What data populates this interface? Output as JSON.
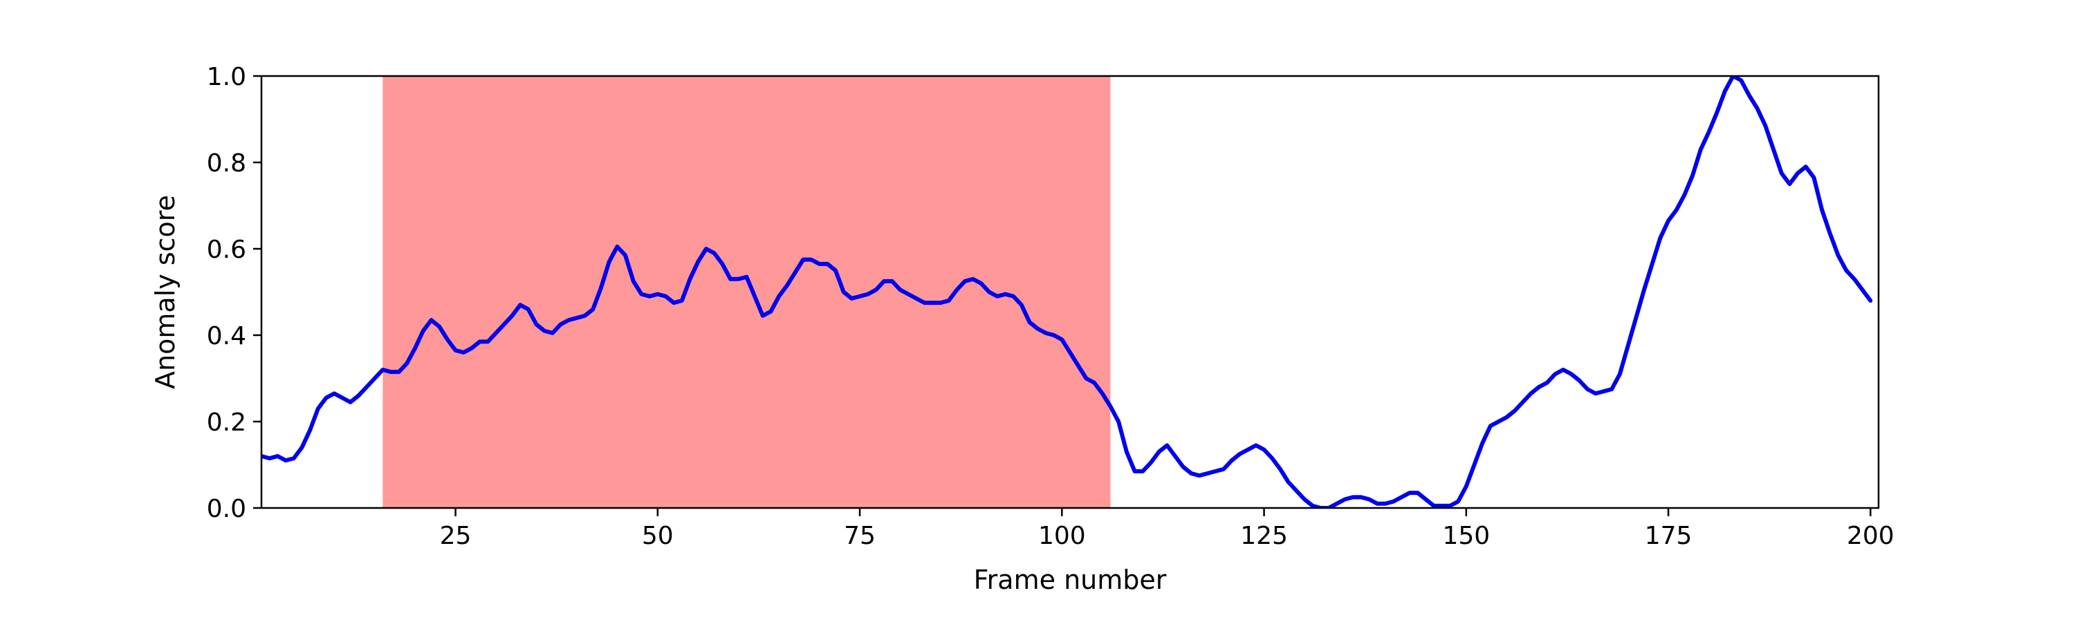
{
  "chart_data": {
    "type": "line",
    "title": "",
    "xlabel": "Frame number",
    "ylabel": "Anomaly score",
    "xlim": [
      1,
      201
    ],
    "ylim": [
      0.0,
      1.0
    ],
    "grid": false,
    "x_ticks": [
      25,
      50,
      75,
      100,
      125,
      150,
      175,
      200
    ],
    "y_ticks": [
      0.0,
      0.2,
      0.4,
      0.6,
      0.8,
      1.0
    ],
    "x_tick_labels": [
      "25",
      "50",
      "75",
      "100",
      "125",
      "150",
      "175",
      "200"
    ],
    "y_tick_labels": [
      "0.0",
      "0.2",
      "0.4",
      "0.6",
      "0.8",
      "1.0"
    ],
    "shaded_region": {
      "x_start": 16,
      "x_end": 106,
      "color": "#ff9999"
    },
    "series": [
      {
        "color": "#0000ee",
        "points": [
          [
            1,
            0.12
          ],
          [
            2,
            0.115
          ],
          [
            3,
            0.12
          ],
          [
            4,
            0.11
          ],
          [
            5,
            0.115
          ],
          [
            6,
            0.14
          ],
          [
            7,
            0.18
          ],
          [
            8,
            0.23
          ],
          [
            9,
            0.255
          ],
          [
            10,
            0.265
          ],
          [
            11,
            0.255
          ],
          [
            12,
            0.245
          ],
          [
            13,
            0.26
          ],
          [
            14,
            0.28
          ],
          [
            15,
            0.3
          ],
          [
            16,
            0.32
          ],
          [
            17,
            0.315
          ],
          [
            18,
            0.315
          ],
          [
            19,
            0.335
          ],
          [
            20,
            0.37
          ],
          [
            21,
            0.41
          ],
          [
            22,
            0.435
          ],
          [
            23,
            0.42
          ],
          [
            24,
            0.39
          ],
          [
            25,
            0.365
          ],
          [
            26,
            0.36
          ],
          [
            27,
            0.37
          ],
          [
            28,
            0.385
          ],
          [
            29,
            0.385
          ],
          [
            30,
            0.405
          ],
          [
            31,
            0.425
          ],
          [
            32,
            0.445
          ],
          [
            33,
            0.47
          ],
          [
            34,
            0.46
          ],
          [
            35,
            0.425
          ],
          [
            36,
            0.41
          ],
          [
            37,
            0.405
          ],
          [
            38,
            0.425
          ],
          [
            39,
            0.435
          ],
          [
            40,
            0.44
          ],
          [
            41,
            0.445
          ],
          [
            42,
            0.46
          ],
          [
            43,
            0.51
          ],
          [
            44,
            0.57
          ],
          [
            45,
            0.605
          ],
          [
            46,
            0.585
          ],
          [
            47,
            0.525
          ],
          [
            48,
            0.495
          ],
          [
            49,
            0.49
          ],
          [
            50,
            0.495
          ],
          [
            51,
            0.49
          ],
          [
            52,
            0.475
          ],
          [
            53,
            0.48
          ],
          [
            54,
            0.53
          ],
          [
            55,
            0.57
          ],
          [
            56,
            0.6
          ],
          [
            57,
            0.59
          ],
          [
            58,
            0.565
          ],
          [
            59,
            0.53
          ],
          [
            60,
            0.53
          ],
          [
            61,
            0.535
          ],
          [
            62,
            0.49
          ],
          [
            63,
            0.445
          ],
          [
            64,
            0.455
          ],
          [
            65,
            0.49
          ],
          [
            66,
            0.515
          ],
          [
            67,
            0.545
          ],
          [
            68,
            0.575
          ],
          [
            69,
            0.575
          ],
          [
            70,
            0.565
          ],
          [
            71,
            0.565
          ],
          [
            72,
            0.55
          ],
          [
            73,
            0.5
          ],
          [
            74,
            0.485
          ],
          [
            75,
            0.49
          ],
          [
            76,
            0.495
          ],
          [
            77,
            0.505
          ],
          [
            78,
            0.525
          ],
          [
            79,
            0.525
          ],
          [
            80,
            0.505
          ],
          [
            81,
            0.495
          ],
          [
            82,
            0.485
          ],
          [
            83,
            0.475
          ],
          [
            84,
            0.475
          ],
          [
            85,
            0.475
          ],
          [
            86,
            0.48
          ],
          [
            87,
            0.505
          ],
          [
            88,
            0.525
          ],
          [
            89,
            0.53
          ],
          [
            90,
            0.52
          ],
          [
            91,
            0.5
          ],
          [
            92,
            0.49
          ],
          [
            93,
            0.495
          ],
          [
            94,
            0.49
          ],
          [
            95,
            0.47
          ],
          [
            96,
            0.43
          ],
          [
            97,
            0.415
          ],
          [
            98,
            0.405
          ],
          [
            99,
            0.4
          ],
          [
            100,
            0.39
          ],
          [
            101,
            0.36
          ],
          [
            102,
            0.33
          ],
          [
            103,
            0.3
          ],
          [
            104,
            0.29
          ],
          [
            105,
            0.265
          ],
          [
            106,
            0.235
          ],
          [
            107,
            0.2
          ],
          [
            108,
            0.13
          ],
          [
            109,
            0.085
          ],
          [
            110,
            0.085
          ],
          [
            111,
            0.105
          ],
          [
            112,
            0.13
          ],
          [
            113,
            0.145
          ],
          [
            114,
            0.12
          ],
          [
            115,
            0.095
          ],
          [
            116,
            0.08
          ],
          [
            117,
            0.075
          ],
          [
            118,
            0.08
          ],
          [
            119,
            0.085
          ],
          [
            120,
            0.09
          ],
          [
            121,
            0.11
          ],
          [
            122,
            0.125
          ],
          [
            123,
            0.135
          ],
          [
            124,
            0.145
          ],
          [
            125,
            0.135
          ],
          [
            126,
            0.115
          ],
          [
            127,
            0.09
          ],
          [
            128,
            0.06
          ],
          [
            129,
            0.04
          ],
          [
            130,
            0.02
          ],
          [
            131,
            0.005
          ],
          [
            132,
            0.0
          ],
          [
            133,
            0.0
          ],
          [
            134,
            0.01
          ],
          [
            135,
            0.02
          ],
          [
            136,
            0.025
          ],
          [
            137,
            0.025
          ],
          [
            138,
            0.02
          ],
          [
            139,
            0.01
          ],
          [
            140,
            0.01
          ],
          [
            141,
            0.015
          ],
          [
            142,
            0.025
          ],
          [
            143,
            0.035
          ],
          [
            144,
            0.035
          ],
          [
            145,
            0.02
          ],
          [
            146,
            0.005
          ],
          [
            147,
            0.005
          ],
          [
            148,
            0.005
          ],
          [
            149,
            0.015
          ],
          [
            150,
            0.05
          ],
          [
            151,
            0.1
          ],
          [
            152,
            0.15
          ],
          [
            153,
            0.19
          ],
          [
            154,
            0.2
          ],
          [
            155,
            0.21
          ],
          [
            156,
            0.225
          ],
          [
            157,
            0.245
          ],
          [
            158,
            0.265
          ],
          [
            159,
            0.28
          ],
          [
            160,
            0.29
          ],
          [
            161,
            0.31
          ],
          [
            162,
            0.32
          ],
          [
            163,
            0.31
          ],
          [
            164,
            0.295
          ],
          [
            165,
            0.275
          ],
          [
            166,
            0.265
          ],
          [
            167,
            0.27
          ],
          [
            168,
            0.275
          ],
          [
            169,
            0.31
          ],
          [
            170,
            0.375
          ],
          [
            171,
            0.44
          ],
          [
            172,
            0.505
          ],
          [
            173,
            0.565
          ],
          [
            174,
            0.625
          ],
          [
            175,
            0.665
          ],
          [
            176,
            0.69
          ],
          [
            177,
            0.725
          ],
          [
            178,
            0.77
          ],
          [
            179,
            0.83
          ],
          [
            180,
            0.87
          ],
          [
            181,
            0.915
          ],
          [
            182,
            0.965
          ],
          [
            183,
            1.0
          ],
          [
            184,
            0.99
          ],
          [
            185,
            0.955
          ],
          [
            186,
            0.925
          ],
          [
            187,
            0.885
          ],
          [
            188,
            0.83
          ],
          [
            189,
            0.775
          ],
          [
            190,
            0.75
          ],
          [
            191,
            0.775
          ],
          [
            192,
            0.79
          ],
          [
            193,
            0.765
          ],
          [
            194,
            0.69
          ],
          [
            195,
            0.635
          ],
          [
            196,
            0.585
          ],
          [
            197,
            0.55
          ],
          [
            198,
            0.53
          ],
          [
            199,
            0.505
          ],
          [
            200,
            0.48
          ]
        ]
      }
    ]
  }
}
